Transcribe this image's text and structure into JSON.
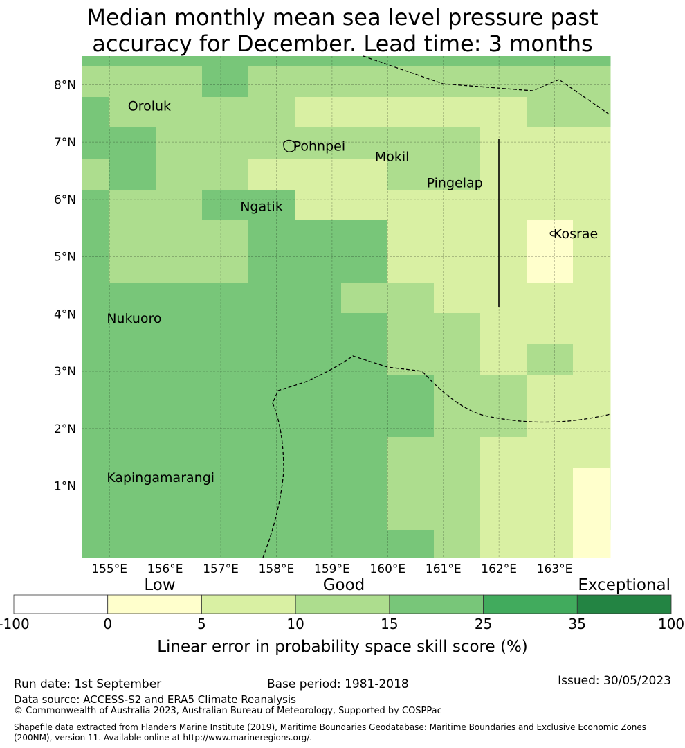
{
  "title_line1": "Median monthly mean sea level pressure past",
  "title_line2": "accuracy for December. Lead time: 3 months",
  "map": {
    "lon_range": [
      154.5,
      164.0
    ],
    "lat_range": [
      -0.25,
      8.5
    ],
    "lon_ticks": [
      {
        "value": 155,
        "label": "155°E"
      },
      {
        "value": 156,
        "label": "156°E"
      },
      {
        "value": 157,
        "label": "157°E"
      },
      {
        "value": 158,
        "label": "158°E"
      },
      {
        "value": 159,
        "label": "159°E"
      },
      {
        "value": 160,
        "label": "160°E"
      },
      {
        "value": 161,
        "label": "161°E"
      },
      {
        "value": 162,
        "label": "162°E"
      },
      {
        "value": 163,
        "label": "163°E"
      }
    ],
    "lat_ticks": [
      {
        "value": 8,
        "label": "8°N"
      },
      {
        "value": 7,
        "label": "7°N"
      },
      {
        "value": 6,
        "label": "6°N"
      },
      {
        "value": 5,
        "label": "5°N"
      },
      {
        "value": 4,
        "label": "4°N"
      },
      {
        "value": 3,
        "label": "3°N"
      },
      {
        "value": 2,
        "label": "2°N"
      },
      {
        "value": 1,
        "label": "1°N"
      }
    ],
    "grid_on": true,
    "places": [
      {
        "name": "Oroluk",
        "lon": 155.33,
        "lat": 7.55
      },
      {
        "name": "Pohnpei",
        "lon": 158.3,
        "lat": 6.85
      },
      {
        "name": "Mokil",
        "lon": 159.77,
        "lat": 6.67
      },
      {
        "name": "Pingelap",
        "lon": 160.7,
        "lat": 6.21
      },
      {
        "name": "Ngatik",
        "lon": 157.35,
        "lat": 5.8
      },
      {
        "name": "Kosrae",
        "lon": 162.98,
        "lat": 5.32
      },
      {
        "name": "Nukuoro",
        "lon": 154.95,
        "lat": 3.85
      },
      {
        "name": "Kapingamarangi",
        "lon": 154.95,
        "lat": 1.07
      }
    ]
  },
  "colorbar": {
    "category_labels": [
      "Low",
      "Good",
      "Exceptional"
    ],
    "tick_labels": [
      "-100",
      "0",
      "5",
      "10",
      "15",
      "25",
      "35",
      "100"
    ],
    "colors": [
      "#ffffff",
      "#ffffcc",
      "#d9f0a3",
      "#addd8e",
      "#78c679",
      "#41ab5d",
      "#238443"
    ],
    "label": "Linear error in probability space skill score (%)"
  },
  "footer": {
    "run_date": "Run date: 1st September",
    "base_period": "Base period: 1981-2018",
    "issued": "Issued: 30/05/2023",
    "data_source": "Data source: ACCESS-S2 and ERA5 Climate Reanalysis",
    "copyright": "© Commonwealth of Australia 2023, Australian Bureau of Meteorology, Supported by COSPPac",
    "shapefile": "Shapefile data extracted from Flanders Marine Institute (2019), Maritime Boundaries Geodatabase: Maritime Boundaries and Exclusive Economic Zones (200NM), version 11. Available online at http://www.marineregions.org/."
  }
}
